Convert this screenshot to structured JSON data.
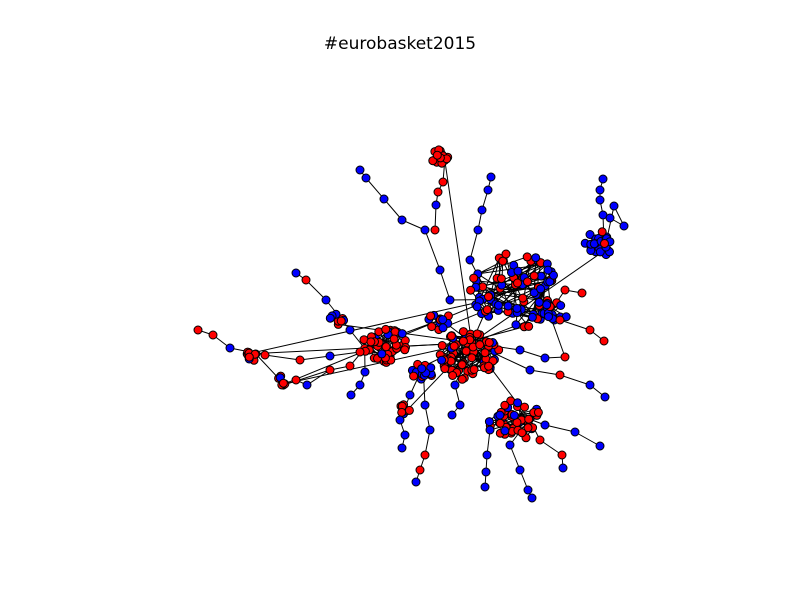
{
  "figure": {
    "title": "#eurobasket2015"
  },
  "network": {
    "node_outline": "#000000",
    "edge_color": "#000000",
    "class_colors": {
      "red": "#ff0000",
      "blue": "#0000ff"
    }
  }
}
